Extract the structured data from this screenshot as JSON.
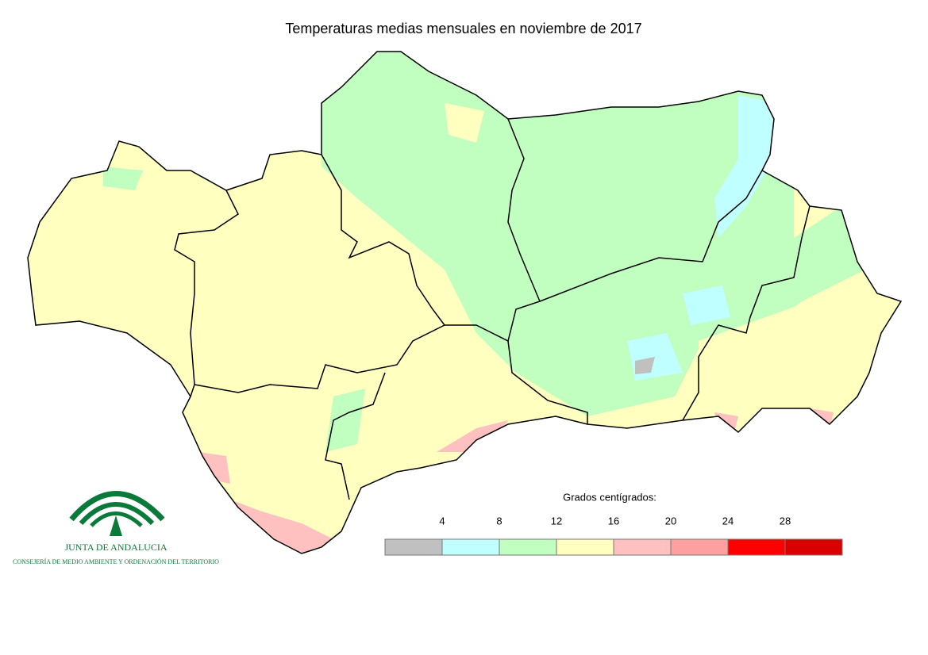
{
  "title": "Temperaturas medias mensuales en noviembre de 2017",
  "legend": {
    "title": "Grados centígrados:",
    "breaks": [
      4,
      8,
      12,
      16,
      20,
      24,
      28
    ],
    "colors": [
      "#c0c0c0",
      "#c0ffff",
      "#c0ffc0",
      "#ffffc0",
      "#ffc0c0",
      "#ffa0a0",
      "#ff0000",
      "#d80000"
    ]
  },
  "logo": {
    "name": "JUNTA DE ANDALUCIA",
    "subtitle": "CONSEJERÍA DE MEDIO AMBIENTE Y ORDENACIÓN DEL TERRITORIO"
  }
}
